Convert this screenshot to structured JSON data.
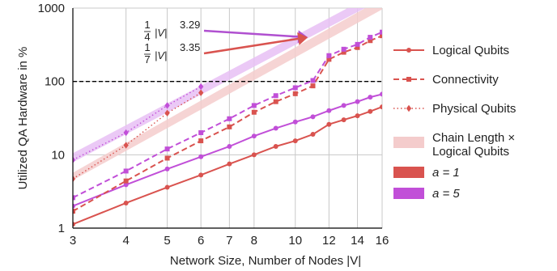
{
  "chart_data": {
    "type": "line",
    "xlabel": "Network Size, Number of Nodes |V|",
    "ylabel": "Utilized QA Hardware in %",
    "x_scale": "log",
    "y_scale": "log",
    "xlim": [
      3,
      16
    ],
    "ylim": [
      1,
      1000
    ],
    "x_ticks": [
      3,
      4,
      5,
      6,
      7,
      8,
      10,
      12,
      14,
      16
    ],
    "x_tick_labels": [
      "3",
      "4",
      "5",
      "6",
      "7",
      "8",
      "10",
      "12",
      "14",
      "16"
    ],
    "y_ticks": [
      1,
      10,
      100,
      1000
    ],
    "y_tick_labels": [
      "1",
      "10",
      "100",
      "1000"
    ],
    "grid": true,
    "reference_line": {
      "y": 100,
      "style": "dashed",
      "color": "#000000"
    },
    "colors": {
      "a1": "#d9534f",
      "a5": "#c14fd8",
      "band_a1": "#f4cccc",
      "band_a5": "#e8c0f4",
      "arrow": "#b050d0"
    },
    "x": [
      3,
      4,
      5,
      6,
      7,
      8,
      9,
      10,
      11,
      12,
      13,
      14,
      15,
      16
    ],
    "series": [
      {
        "name": "Logical Qubits",
        "a": 1,
        "style": "solid",
        "marker": "circle",
        "values": [
          1.13,
          2.2,
          3.6,
          5.3,
          7.5,
          10,
          13,
          15.5,
          19,
          26,
          30,
          34,
          39,
          45
        ]
      },
      {
        "name": "Logical Qubits",
        "a": 5,
        "style": "solid",
        "marker": "circle",
        "values": [
          2,
          3.9,
          6.4,
          9.4,
          13,
          18,
          23,
          28,
          33,
          40,
          47,
          53,
          61,
          67
        ]
      },
      {
        "name": "Connectivity",
        "a": 1,
        "style": "dashed",
        "marker": "square",
        "values": [
          1.7,
          4.4,
          9,
          15.5,
          24,
          38,
          53,
          68,
          87,
          200,
          250,
          290,
          360,
          420
        ]
      },
      {
        "name": "Connectivity",
        "a": 5,
        "style": "dashed",
        "marker": "square",
        "values": [
          2.6,
          6,
          12,
          20,
          31,
          47,
          64,
          82,
          103,
          225,
          275,
          320,
          400,
          470
        ]
      },
      {
        "name": "Physical Qubits",
        "a": 1,
        "style": "dotted",
        "marker": "diamond",
        "x": [
          3,
          4,
          5,
          6
        ],
        "values": [
          4.7,
          13.5,
          37,
          70
        ]
      },
      {
        "name": "Physical Qubits",
        "a": 5,
        "style": "dotted",
        "marker": "diamond",
        "x": [
          3,
          4,
          5,
          6
        ],
        "values": [
          8.5,
          20,
          47,
          85
        ]
      }
    ],
    "bands": [
      {
        "a": 1,
        "x": [
          3,
          16
        ],
        "lower": [
          4.5,
          960
        ],
        "upper": [
          5.7,
          1350
        ]
      },
      {
        "a": 5,
        "x": [
          3,
          16
        ],
        "lower": [
          7.9,
          1330
        ],
        "upper": [
          10.5,
          1770
        ]
      }
    ],
    "annotations": [
      {
        "fraction": [
          "1",
          "4"
        ],
        "expr": "|V|",
        "exponent": "3.29",
        "points_to": {
          "x": 10.7,
          "y": 400
        }
      },
      {
        "fraction": [
          "1",
          "7"
        ],
        "expr": "|V|",
        "exponent": "3.35",
        "points_to": {
          "x": 10.7,
          "y": 400
        }
      }
    ],
    "legend": {
      "placement": "right",
      "entries": [
        {
          "label": "Logical Qubits",
          "kind": "line",
          "style": "solid",
          "marker": "circle"
        },
        {
          "label": "Connectivity",
          "kind": "line",
          "style": "dashed",
          "marker": "square"
        },
        {
          "label": "Physical Qubits",
          "kind": "line",
          "style": "dotted",
          "marker": "diamond"
        },
        {
          "label_lines": [
            "Chain Length ×",
            "Logical Qubits"
          ],
          "kind": "band"
        },
        {
          "label": "a = 1",
          "kind": "swatch",
          "color_key": "a1"
        },
        {
          "label": "a = 5",
          "kind": "swatch",
          "color_key": "a5"
        }
      ]
    }
  }
}
